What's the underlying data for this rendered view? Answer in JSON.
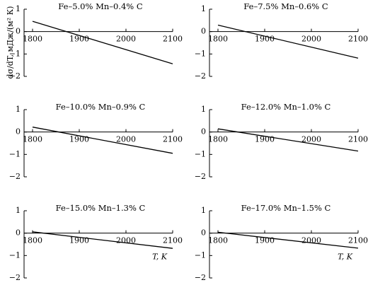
{
  "figure": {
    "ylabel": "dσ/dT, мДж/(м² К)"
  },
  "chart_data": [
    {
      "type": "line",
      "title": "Fe–5.0% Mn–0.4% C",
      "xlabel": "",
      "xlim": [
        1800,
        2100
      ],
      "ylim": [
        -2,
        1
      ],
      "xticks": [
        1800,
        1900,
        2000,
        2100
      ],
      "yticks": [
        1,
        0,
        -1,
        -2
      ],
      "ytick_labels": [
        "1",
        "0",
        "−1",
        "−2"
      ],
      "x": [
        1800,
        2100
      ],
      "y": [
        0.46,
        -1.44
      ]
    },
    {
      "type": "line",
      "title": "Fe–7.5% Mn–0.6% C",
      "xlabel": "",
      "xlim": [
        1800,
        2100
      ],
      "ylim": [
        -2,
        1
      ],
      "xticks": [
        1800,
        1900,
        2000,
        2100
      ],
      "yticks": [
        1,
        0,
        -1,
        -2
      ],
      "ytick_labels": [
        "1",
        "0",
        "−1",
        "−2"
      ],
      "x": [
        1800,
        2100
      ],
      "y": [
        0.29,
        -1.19
      ]
    },
    {
      "type": "line",
      "title": "Fe–10.0% Mn–0.9% C",
      "xlabel": "",
      "xlim": [
        1800,
        2100
      ],
      "ylim": [
        -2,
        1
      ],
      "xticks": [
        1800,
        1900,
        2000,
        2100
      ],
      "yticks": [
        1,
        0,
        -1,
        -2
      ],
      "ytick_labels": [
        "1",
        "0",
        "−1",
        "−2"
      ],
      "x": [
        1800,
        2100
      ],
      "y": [
        0.22,
        -0.95
      ]
    },
    {
      "type": "line",
      "title": "Fe–12.0% Mn–1.0% C",
      "xlabel": "",
      "xlim": [
        1800,
        2100
      ],
      "ylim": [
        -2,
        1
      ],
      "xticks": [
        1800,
        1900,
        2000,
        2100
      ],
      "yticks": [
        1,
        0,
        -1,
        -2
      ],
      "ytick_labels": [
        "1",
        "0",
        "−1",
        "−2"
      ],
      "x": [
        1800,
        2100
      ],
      "y": [
        0.14,
        -0.85
      ]
    },
    {
      "type": "line",
      "title": "Fe–15.0% Mn–1.3% C",
      "xlabel": "T, K",
      "xlim": [
        1800,
        2100
      ],
      "ylim": [
        -2,
        1
      ],
      "xticks": [
        1800,
        1900,
        2000,
        2100
      ],
      "yticks": [
        1,
        0,
        -1,
        -2
      ],
      "ytick_labels": [
        "1",
        "0",
        "−1",
        "−2"
      ],
      "x": [
        1800,
        2100
      ],
      "y": [
        0.06,
        -0.68
      ]
    },
    {
      "type": "line",
      "title": "Fe–17.0% Mn–1.5% C",
      "xlabel": "T, K",
      "xlim": [
        1800,
        2100
      ],
      "ylim": [
        -2,
        1
      ],
      "xticks": [
        1800,
        1900,
        2000,
        2100
      ],
      "yticks": [
        1,
        0,
        -1,
        -2
      ],
      "ytick_labels": [
        "1",
        "0",
        "−1",
        "−2"
      ],
      "x": [
        1800,
        2100
      ],
      "y": [
        0.04,
        -0.67
      ]
    }
  ]
}
